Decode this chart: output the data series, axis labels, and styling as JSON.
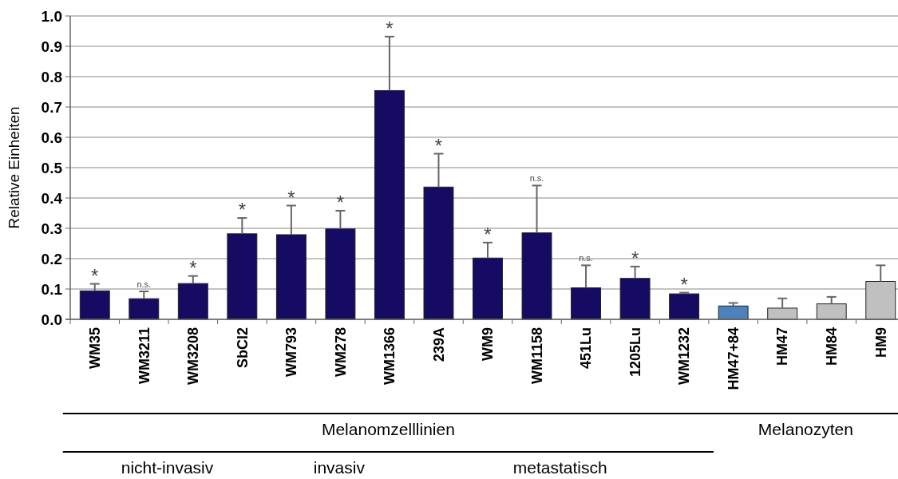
{
  "chart_data": {
    "type": "bar",
    "ylabel": "Relative Einheiten",
    "categories": [
      "WM35",
      "WM3211",
      "WM3208",
      "SbCl2",
      "WM793",
      "WM278",
      "WM1366",
      "239A",
      "WM9",
      "WM1158",
      "451Lu",
      "1205Lu",
      "WM1232",
      "HM47+84",
      "HM47",
      "HM84",
      "HM9"
    ],
    "values": [
      0.094,
      0.068,
      0.118,
      0.282,
      0.279,
      0.298,
      0.754,
      0.436,
      0.202,
      0.285,
      0.104,
      0.135,
      0.084,
      0.044,
      0.037,
      0.051,
      0.125
    ],
    "errors": [
      [
        0.094,
        0.117
      ],
      [
        0.068,
        0.092
      ],
      [
        0.118,
        0.143
      ],
      [
        0.282,
        0.334
      ],
      [
        0.279,
        0.375
      ],
      [
        0.298,
        0.358
      ],
      [
        0.754,
        0.932
      ],
      [
        0.436,
        0.546
      ],
      [
        0.202,
        0.253
      ],
      [
        0.285,
        0.441
      ],
      [
        0.104,
        0.178
      ],
      [
        0.135,
        0.174
      ],
      [
        0.084,
        0.088
      ],
      [
        0.044,
        0.054
      ],
      [
        0.037,
        0.069
      ],
      [
        0.051,
        0.074
      ],
      [
        0.125,
        0.178
      ]
    ],
    "colors": [
      "#160b63",
      "#160b63",
      "#160b63",
      "#160b63",
      "#160b63",
      "#160b63",
      "#160b63",
      "#160b63",
      "#160b63",
      "#160b63",
      "#160b63",
      "#160b63",
      "#160b63",
      "#4f81bd",
      "#c0c0c0",
      "#c0c0c0",
      "#c0c0c0"
    ],
    "ylim": [
      0,
      1
    ],
    "yticks": [
      {
        "value": 0,
        "label": "0.0"
      },
      {
        "value": 0.1,
        "label": "0.1"
      },
      {
        "value": 0.2,
        "label": "0.2"
      },
      {
        "value": 0.3,
        "label": "0.3"
      },
      {
        "value": 0.4,
        "label": "0.4"
      },
      {
        "value": 0.5,
        "label": "0.5"
      },
      {
        "value": 0.6,
        "label": "0.6"
      },
      {
        "value": 0.7,
        "label": "0.7"
      },
      {
        "value": 0.8,
        "label": "0.8"
      },
      {
        "value": 0.9,
        "label": "0.9"
      },
      {
        "value": 1,
        "label": "1.0"
      }
    ],
    "grid": "y",
    "annotations": [
      {
        "text": "*",
        "x": "WM35",
        "y": 0.117
      },
      {
        "text": "n.s.",
        "x": "WM3211",
        "y": 0.092
      },
      {
        "text": "*",
        "x": "WM3208",
        "y": 0.143
      },
      {
        "text": "*",
        "x": "SbCl2",
        "y": 0.334
      },
      {
        "text": "*",
        "x": "WM793",
        "y": 0.375
      },
      {
        "text": "*",
        "x": "WM278",
        "y": 0.358
      },
      {
        "text": "*",
        "x": "WM1366",
        "y": 0.932
      },
      {
        "text": "*",
        "x": "239A",
        "y": 0.546
      },
      {
        "text": "*",
        "x": "WM9",
        "y": 0.253
      },
      {
        "text": "n.s.",
        "x": "WM1158",
        "y": 0.441
      },
      {
        "text": "n.s.",
        "x": "451Lu",
        "y": 0.178
      },
      {
        "text": "*",
        "x": "1205Lu",
        "y": 0.174
      },
      {
        "text": "*",
        "x": "WM1232",
        "y": 0.088
      },
      "Melanomzelllinien",
      "Melanozyten",
      "nicht-invasiv",
      "invasiv",
      "metastatisch"
    ]
  }
}
